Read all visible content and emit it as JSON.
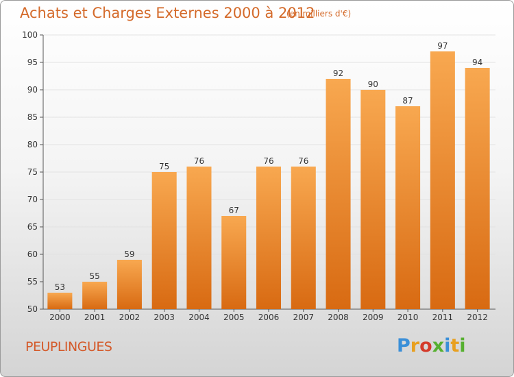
{
  "title": "Achats et Charges Externes 2000 à 2012",
  "subtitle": "(en milliers d'€)",
  "commune": "PEUPLINGUES",
  "logo": {
    "letters": [
      "P",
      "r",
      "o",
      "x",
      "i",
      "t",
      "i"
    ],
    "colors": [
      "#3a8fd8",
      "#e8a020",
      "#d43a2a",
      "#56b030",
      "#3a8fd8",
      "#e8a020",
      "#56b030"
    ]
  },
  "colors": {
    "bar_top": "#f8a850",
    "bar_bottom": "#d86a12",
    "title": "#d46a2a"
  },
  "chart_data": {
    "type": "bar",
    "categories": [
      "2000",
      "2001",
      "2002",
      "2003",
      "2004",
      "2005",
      "2006",
      "2007",
      "2008",
      "2009",
      "2010",
      "2011",
      "2012"
    ],
    "values": [
      53,
      55,
      59,
      75,
      76,
      67,
      76,
      76,
      92,
      90,
      87,
      97,
      94
    ],
    "title": "Achats et Charges Externes 2000 à 2012",
    "xlabel": "",
    "ylabel": "",
    "ylim": [
      50,
      100
    ],
    "yticks": [
      50,
      55,
      60,
      65,
      70,
      75,
      80,
      85,
      90,
      95,
      100
    ],
    "grid": true
  }
}
